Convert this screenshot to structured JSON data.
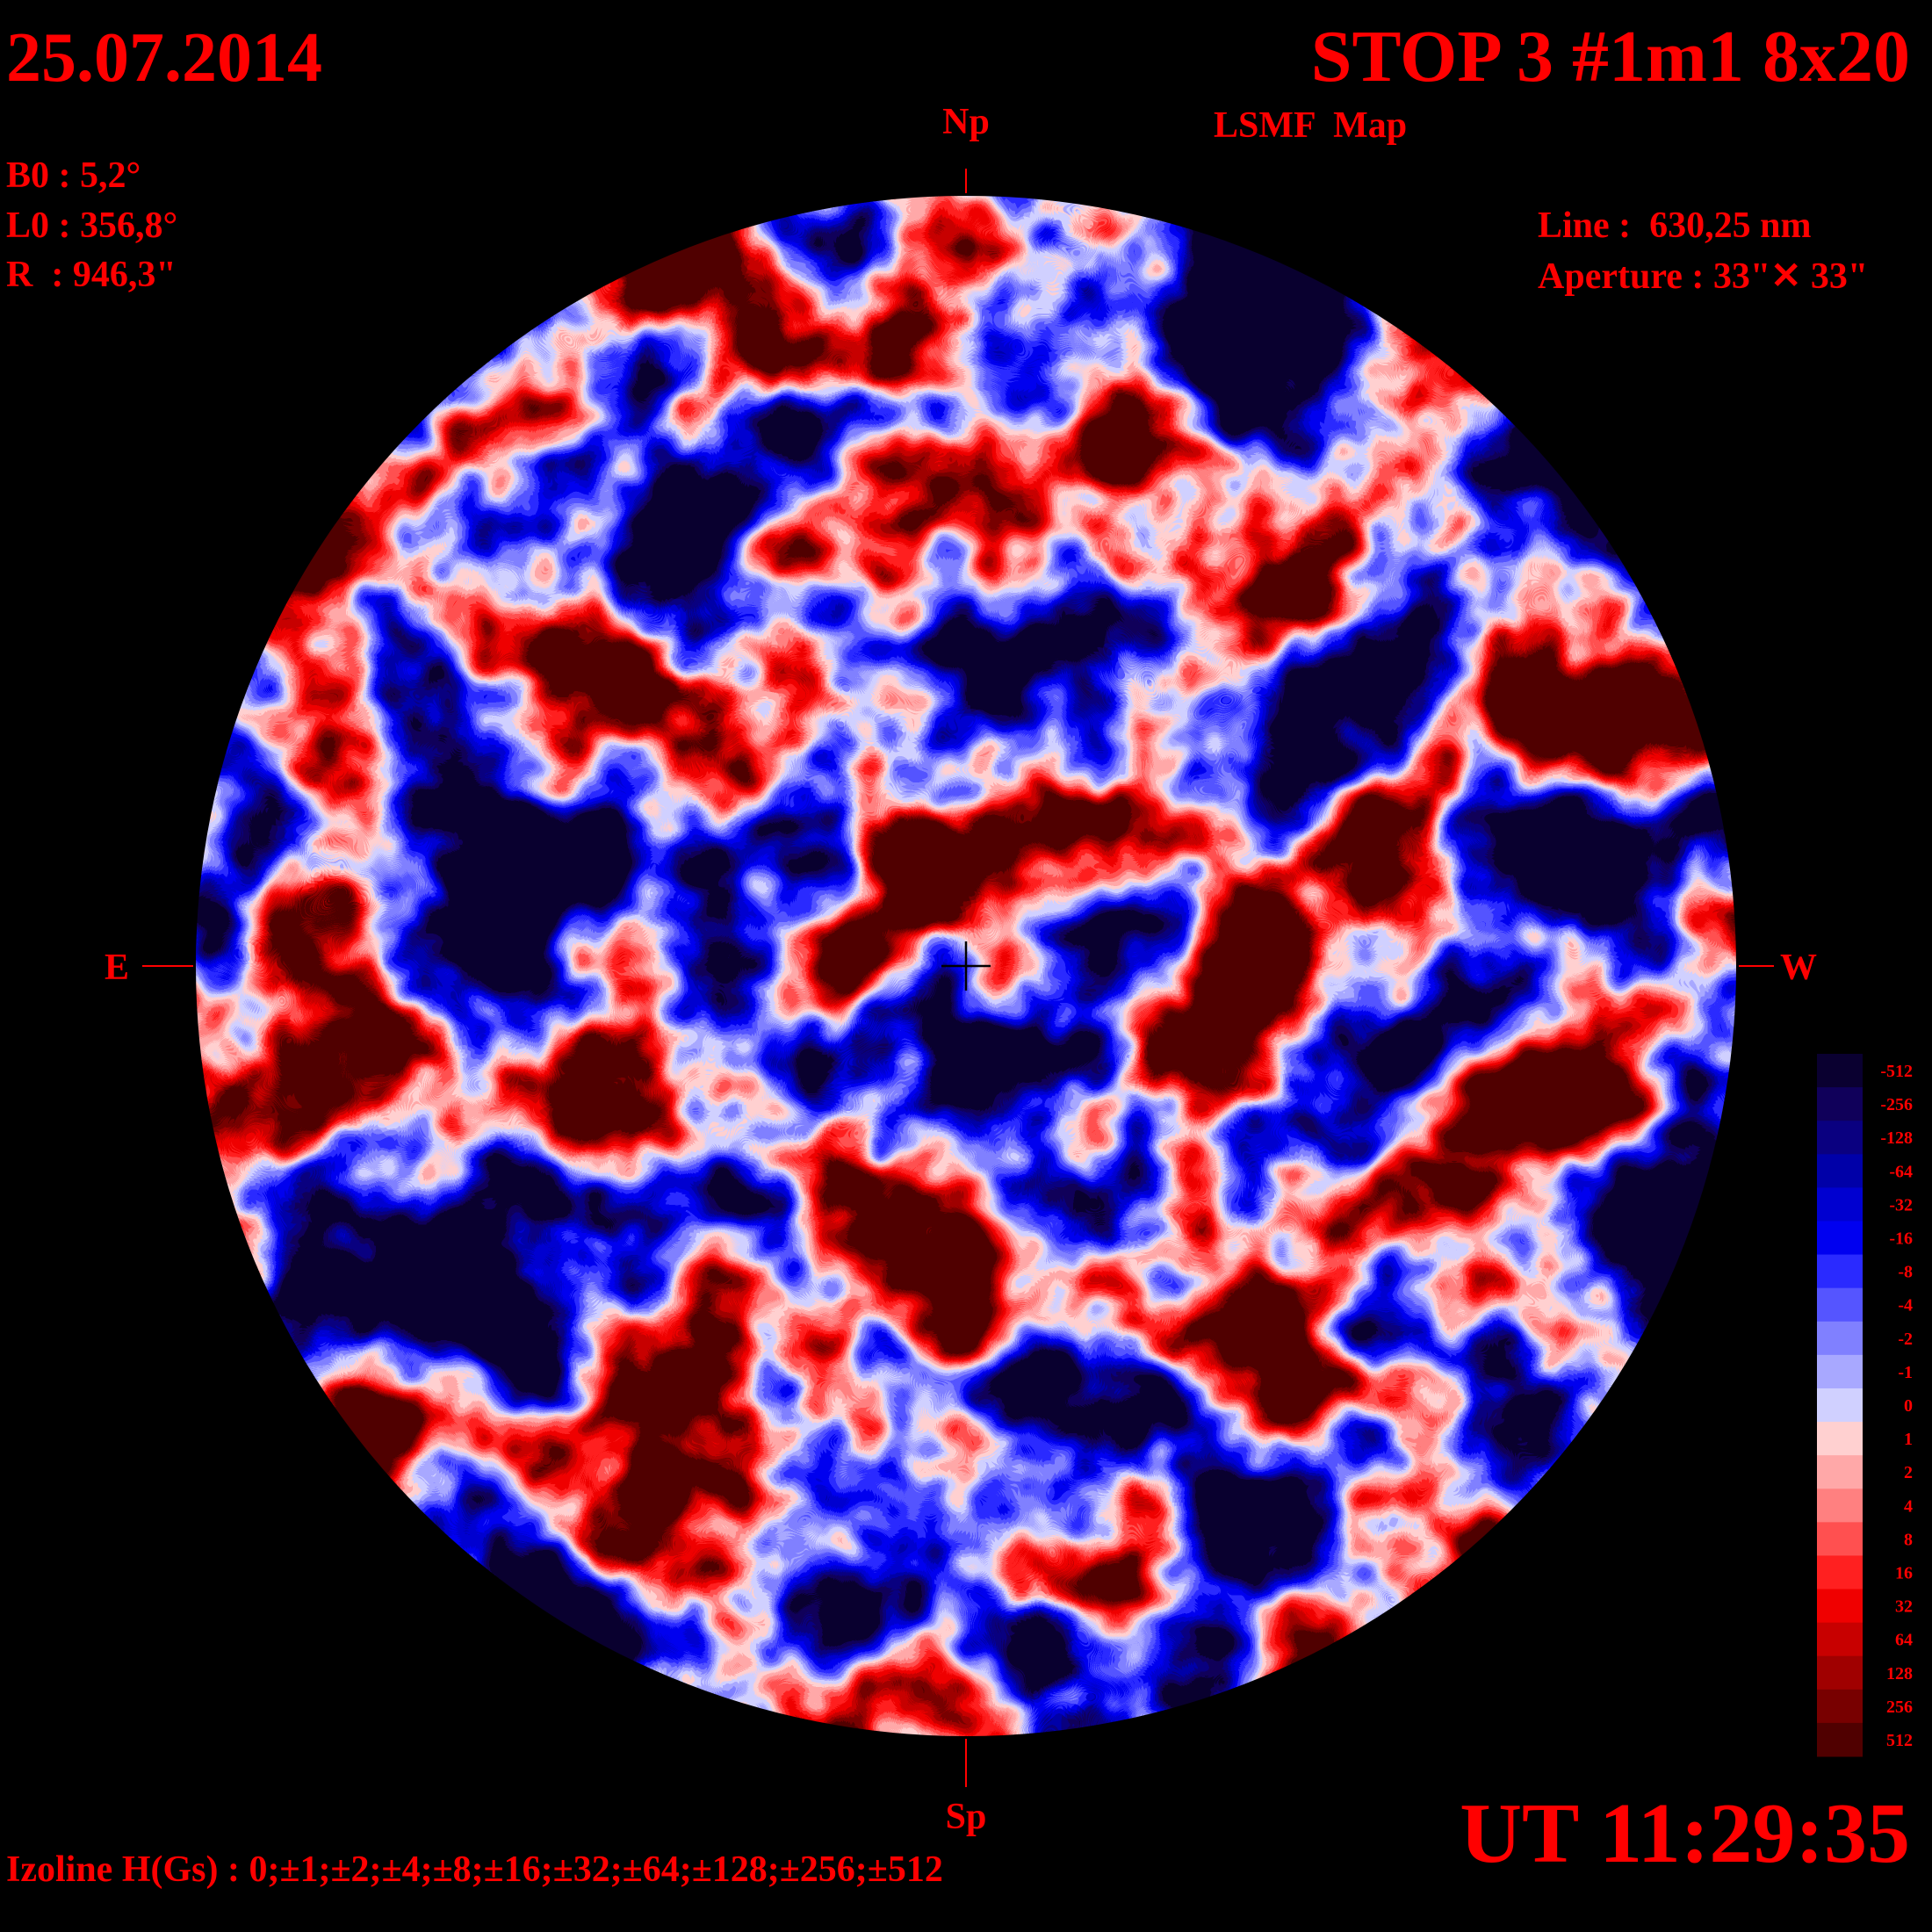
{
  "header": {
    "date": "25.07.2014",
    "title": "STOP 3 #1m1 8x20",
    "subtitle": "LSMF  Map",
    "ut": "UT 11:29:35"
  },
  "parameters": {
    "b0": "B0 : 5,2°",
    "l0": "L0 : 356,8°",
    "r": "R  : 946,3\""
  },
  "instrument": {
    "line": "Line :  630,25 nm",
    "aperture": "Aperture : 33\"✕ 33\""
  },
  "directions": {
    "north": "Np",
    "south": "Sp",
    "east": "E",
    "west": "W"
  },
  "footer": {
    "izoline": "Izoline H(Gs) : 0;±1;±2;±4;±8;±16;±32;±64;±128;±256;±512"
  },
  "colorbar": {
    "labels": [
      -512,
      -256,
      -128,
      -64,
      -32,
      -16,
      -8,
      -4,
      -2,
      -1,
      0,
      1,
      2,
      4,
      8,
      16,
      32,
      64,
      128,
      256,
      512
    ],
    "colors": [
      "#0a0030",
      "#10005a",
      "#0a0080",
      "#0000a8",
      "#0000d0",
      "#0000f0",
      "#2a2aff",
      "#5555ff",
      "#8080ff",
      "#a8a8ff",
      "#d0d0ff",
      "#ffd0d0",
      "#ffa8a8",
      "#ff8080",
      "#ff5050",
      "#ff2020",
      "#f00000",
      "#c80000",
      "#a00000",
      "#780000",
      "#500000"
    ]
  }
}
